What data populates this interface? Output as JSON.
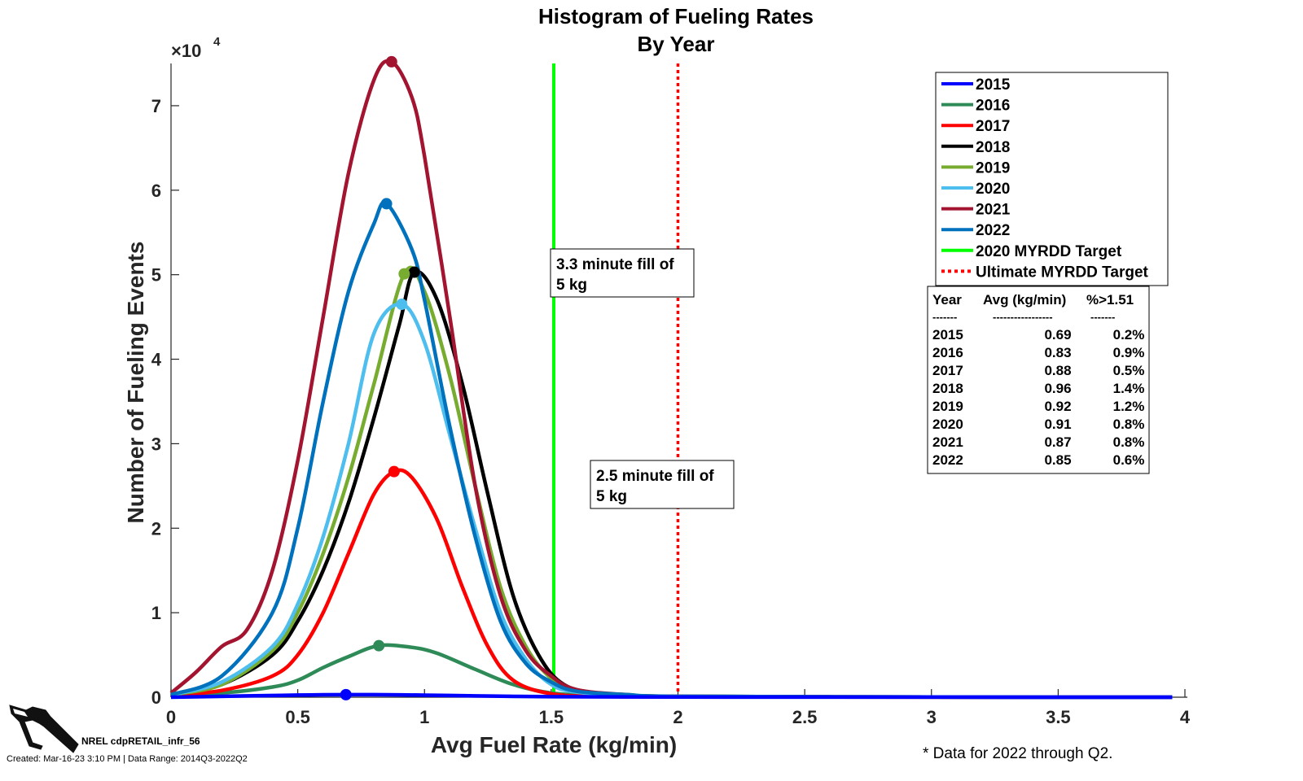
{
  "chart_data": {
    "type": "line",
    "title": [
      "Histogram of Fueling Rates",
      "By Year"
    ],
    "xlabel": "Avg Fuel Rate (kg/min)",
    "ylabel": "Number of Fueling Events",
    "y_exponent_label": "×10",
    "y_exponent_power": "4",
    "xlim": [
      0,
      4
    ],
    "ylim": [
      0,
      75000
    ],
    "x_ticks": [
      0,
      0.5,
      1,
      1.5,
      2,
      2.5,
      3,
      3.5,
      4
    ],
    "x_tick_labels": [
      "0",
      "0.5",
      "1",
      "1.5",
      "2",
      "2.5",
      "3",
      "3.5",
      "4"
    ],
    "y_ticks": [
      0,
      10000,
      20000,
      30000,
      40000,
      50000,
      60000,
      70000
    ],
    "y_tick_labels": [
      "0",
      "1",
      "2",
      "3",
      "4",
      "5",
      "6",
      "7"
    ],
    "series": [
      {
        "name": "2015",
        "color": "#0000ff",
        "x": [
          0,
          0.3,
          0.5,
          0.7,
          0.9,
          1.1,
          1.3,
          1.5,
          2.0,
          3.0,
          3.95
        ],
        "y": [
          0,
          150,
          250,
          300,
          280,
          200,
          120,
          60,
          20,
          5,
          0
        ],
        "peak": [
          0.69,
          300
        ]
      },
      {
        "name": "2016",
        "color": "#2e8b57",
        "x": [
          0,
          0.2,
          0.4,
          0.5,
          0.6,
          0.7,
          0.82,
          0.95,
          1.05,
          1.2,
          1.35,
          1.5,
          1.7,
          2.0,
          3.0,
          3.95
        ],
        "y": [
          300,
          500,
          1200,
          2000,
          3500,
          4800,
          6100,
          5900,
          5200,
          3300,
          1500,
          500,
          150,
          50,
          10,
          0
        ],
        "peak": [
          0.82,
          6100
        ]
      },
      {
        "name": "2017",
        "color": "#ff0000",
        "x": [
          0,
          0.2,
          0.4,
          0.5,
          0.6,
          0.7,
          0.8,
          0.88,
          0.95,
          1.05,
          1.15,
          1.25,
          1.35,
          1.5,
          1.7,
          2.0,
          3.0,
          3.95
        ],
        "y": [
          200,
          800,
          2500,
          5000,
          10000,
          17000,
          24000,
          26700,
          26000,
          21000,
          13000,
          6000,
          2000,
          400,
          100,
          50,
          10,
          0
        ],
        "peak": [
          0.88,
          26700
        ]
      },
      {
        "name": "2018",
        "color": "#000000",
        "x": [
          0,
          0.2,
          0.4,
          0.5,
          0.6,
          0.7,
          0.8,
          0.9,
          0.96,
          1.05,
          1.15,
          1.25,
          1.35,
          1.45,
          1.55,
          1.7,
          2.0,
          3.0,
          3.95
        ],
        "y": [
          300,
          1500,
          5000,
          9000,
          15000,
          23000,
          33000,
          44000,
          50300,
          47000,
          37000,
          24000,
          12000,
          5000,
          1500,
          400,
          100,
          20,
          0
        ],
        "peak": [
          0.96,
          50300
        ]
      },
      {
        "name": "2019",
        "color": "#77ac30",
        "x": [
          0,
          0.2,
          0.4,
          0.5,
          0.6,
          0.7,
          0.8,
          0.92,
          1.0,
          1.1,
          1.2,
          1.3,
          1.4,
          1.5,
          1.6,
          1.8,
          2.0,
          3.0,
          3.95
        ],
        "y": [
          300,
          1500,
          5500,
          10000,
          17000,
          26000,
          37000,
          50100,
          48000,
          38000,
          25000,
          13000,
          6000,
          2200,
          700,
          200,
          100,
          20,
          0
        ],
        "peak": [
          0.92,
          50100
        ]
      },
      {
        "name": "2020",
        "color": "#4dbeee",
        "x": [
          0,
          0.2,
          0.4,
          0.5,
          0.6,
          0.7,
          0.8,
          0.91,
          1.0,
          1.1,
          1.2,
          1.3,
          1.4,
          1.5,
          1.6,
          1.8,
          2.0,
          3.0,
          3.95
        ],
        "y": [
          300,
          1800,
          6000,
          11000,
          19000,
          30000,
          43000,
          46500,
          42000,
          31000,
          20000,
          10000,
          4500,
          1500,
          600,
          200,
          100,
          20,
          0
        ],
        "peak": [
          0.91,
          46500
        ]
      },
      {
        "name": "2021",
        "color": "#a2142f",
        "x": [
          0,
          0.1,
          0.2,
          0.3,
          0.4,
          0.5,
          0.6,
          0.7,
          0.8,
          0.87,
          0.95,
          1.0,
          1.1,
          1.2,
          1.3,
          1.4,
          1.5,
          1.6,
          1.8,
          2.0,
          3.0,
          3.95
        ],
        "y": [
          500,
          3000,
          6000,
          8000,
          15000,
          28000,
          45000,
          62000,
          73000,
          75200,
          71000,
          64000,
          45000,
          25000,
          12000,
          5500,
          2500,
          900,
          300,
          100,
          20,
          0
        ],
        "peak": [
          0.87,
          75200
        ]
      },
      {
        "name": "2022",
        "color": "#0072bd",
        "x": [
          0,
          0.2,
          0.4,
          0.5,
          0.6,
          0.7,
          0.8,
          0.85,
          0.95,
          1.0,
          1.1,
          1.2,
          1.3,
          1.4,
          1.5,
          1.6,
          1.8,
          2.0,
          3.0,
          3.95
        ],
        "y": [
          300,
          2500,
          10000,
          20000,
          35000,
          48000,
          56000,
          58400,
          53000,
          47000,
          32000,
          19000,
          9000,
          4000,
          1800,
          700,
          300,
          100,
          20,
          0
        ],
        "peak": [
          0.85,
          58400
        ]
      }
    ],
    "reference_lines": [
      {
        "name": "2020 MYRDD Target",
        "x": 1.51,
        "color": "#00ff00",
        "style": "solid"
      },
      {
        "name": "Ultimate MYRDD Target",
        "x": 2.0,
        "color": "#ff0000",
        "style": "dotted"
      }
    ],
    "annotations": [
      {
        "lines": [
          "3.3 minute fill of",
          "5 kg"
        ]
      },
      {
        "lines": [
          "2.5 minute fill of",
          "5 kg"
        ]
      }
    ],
    "summary_table": {
      "headers": [
        "Year",
        "Avg (kg/min)",
        "%>1.51"
      ],
      "separators": [
        "-------",
        "-----------------",
        "-------"
      ],
      "rows": [
        [
          "2015",
          "0.69",
          "0.2%"
        ],
        [
          "2016",
          "0.83",
          "0.9%"
        ],
        [
          "2017",
          "0.88",
          "0.5%"
        ],
        [
          "2018",
          "0.96",
          "1.4%"
        ],
        [
          "2019",
          "0.92",
          "1.2%"
        ],
        [
          "2020",
          "0.91",
          "0.8%"
        ],
        [
          "2021",
          "0.87",
          "0.8%"
        ],
        [
          "2022",
          "0.85",
          "0.6%"
        ]
      ]
    },
    "legend_position": "top-right",
    "grid": false
  },
  "footer": {
    "id_label": "NREL cdpRETAIL_infr_56",
    "created_label": "Created: Mar-16-23  3:10 PM | Data Range: 2014Q3-2022Q2"
  },
  "footnote": "* Data for 2022 through Q2."
}
